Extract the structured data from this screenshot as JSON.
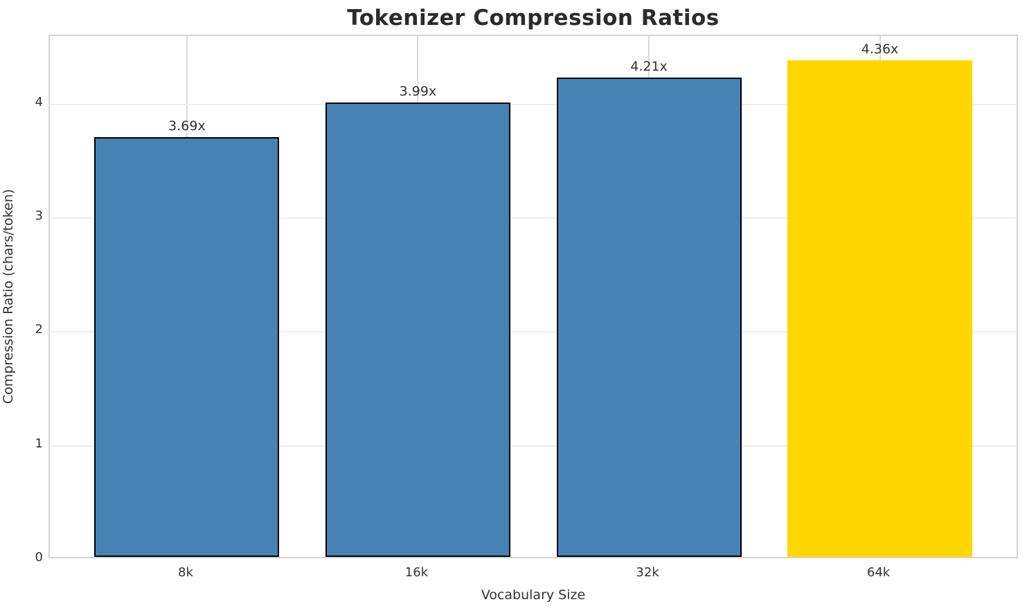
{
  "chart_data": {
    "type": "bar",
    "title": "Tokenizer Compression Ratios",
    "xlabel": "Vocabulary Size",
    "ylabel": "Compression Ratio (chars/token)",
    "categories": [
      "8k",
      "16k",
      "32k",
      "64k"
    ],
    "values": [
      3.69,
      3.99,
      4.21,
      4.36
    ],
    "bar_labels": [
      "3.69x",
      "3.99x",
      "4.21x",
      "4.36x"
    ],
    "bar_colors": [
      "#4682B4",
      "#4682B4",
      "#4682B4",
      "#FFD700"
    ],
    "bar_edge_colors": [
      "#000000",
      "#000000",
      "#000000",
      "none"
    ],
    "y_ticks": [
      0,
      1,
      2,
      3,
      4
    ],
    "ylim": [
      0,
      4.6
    ],
    "grid": "both",
    "legend_position": "none",
    "colors": {
      "title_text": "#2b2b2b",
      "axis_text": "#333333",
      "grid_horizontal": "#efefef",
      "grid_vertical": "#d9d9d9",
      "plot_border": "#d4d4d4",
      "background": "#ffffff",
      "highlight_bar": "#FFD700",
      "default_bar": "#4682B4"
    }
  }
}
